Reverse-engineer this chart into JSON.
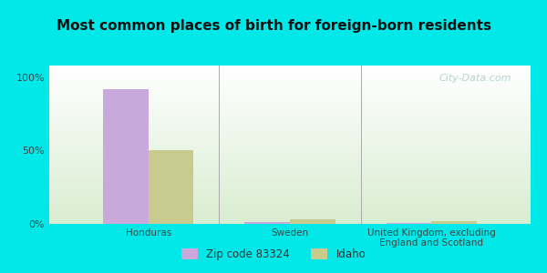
{
  "title": "Most common places of birth for foreign-born residents",
  "categories": [
    "Honduras",
    "Sweden",
    "United Kingdom, excluding\nEngland and Scotland"
  ],
  "zip_values": [
    92,
    1,
    0.5
  ],
  "idaho_values": [
    50,
    3,
    2
  ],
  "zip_color": "#c9a8dc",
  "idaho_color": "#c8ca8e",
  "background_outer": "#00e8e8",
  "background_plot_top": "#ffffff",
  "background_plot_bottom": "#d8edd0",
  "yticks": [
    0,
    50,
    100
  ],
  "ytick_labels": [
    "0%",
    "50%",
    "100%"
  ],
  "ylim": [
    0,
    108
  ],
  "legend_zip_label": "Zip code 83324",
  "legend_idaho_label": "Idaho",
  "bar_width": 0.32,
  "title_fontsize": 11,
  "watermark_text": "City-Data.com"
}
